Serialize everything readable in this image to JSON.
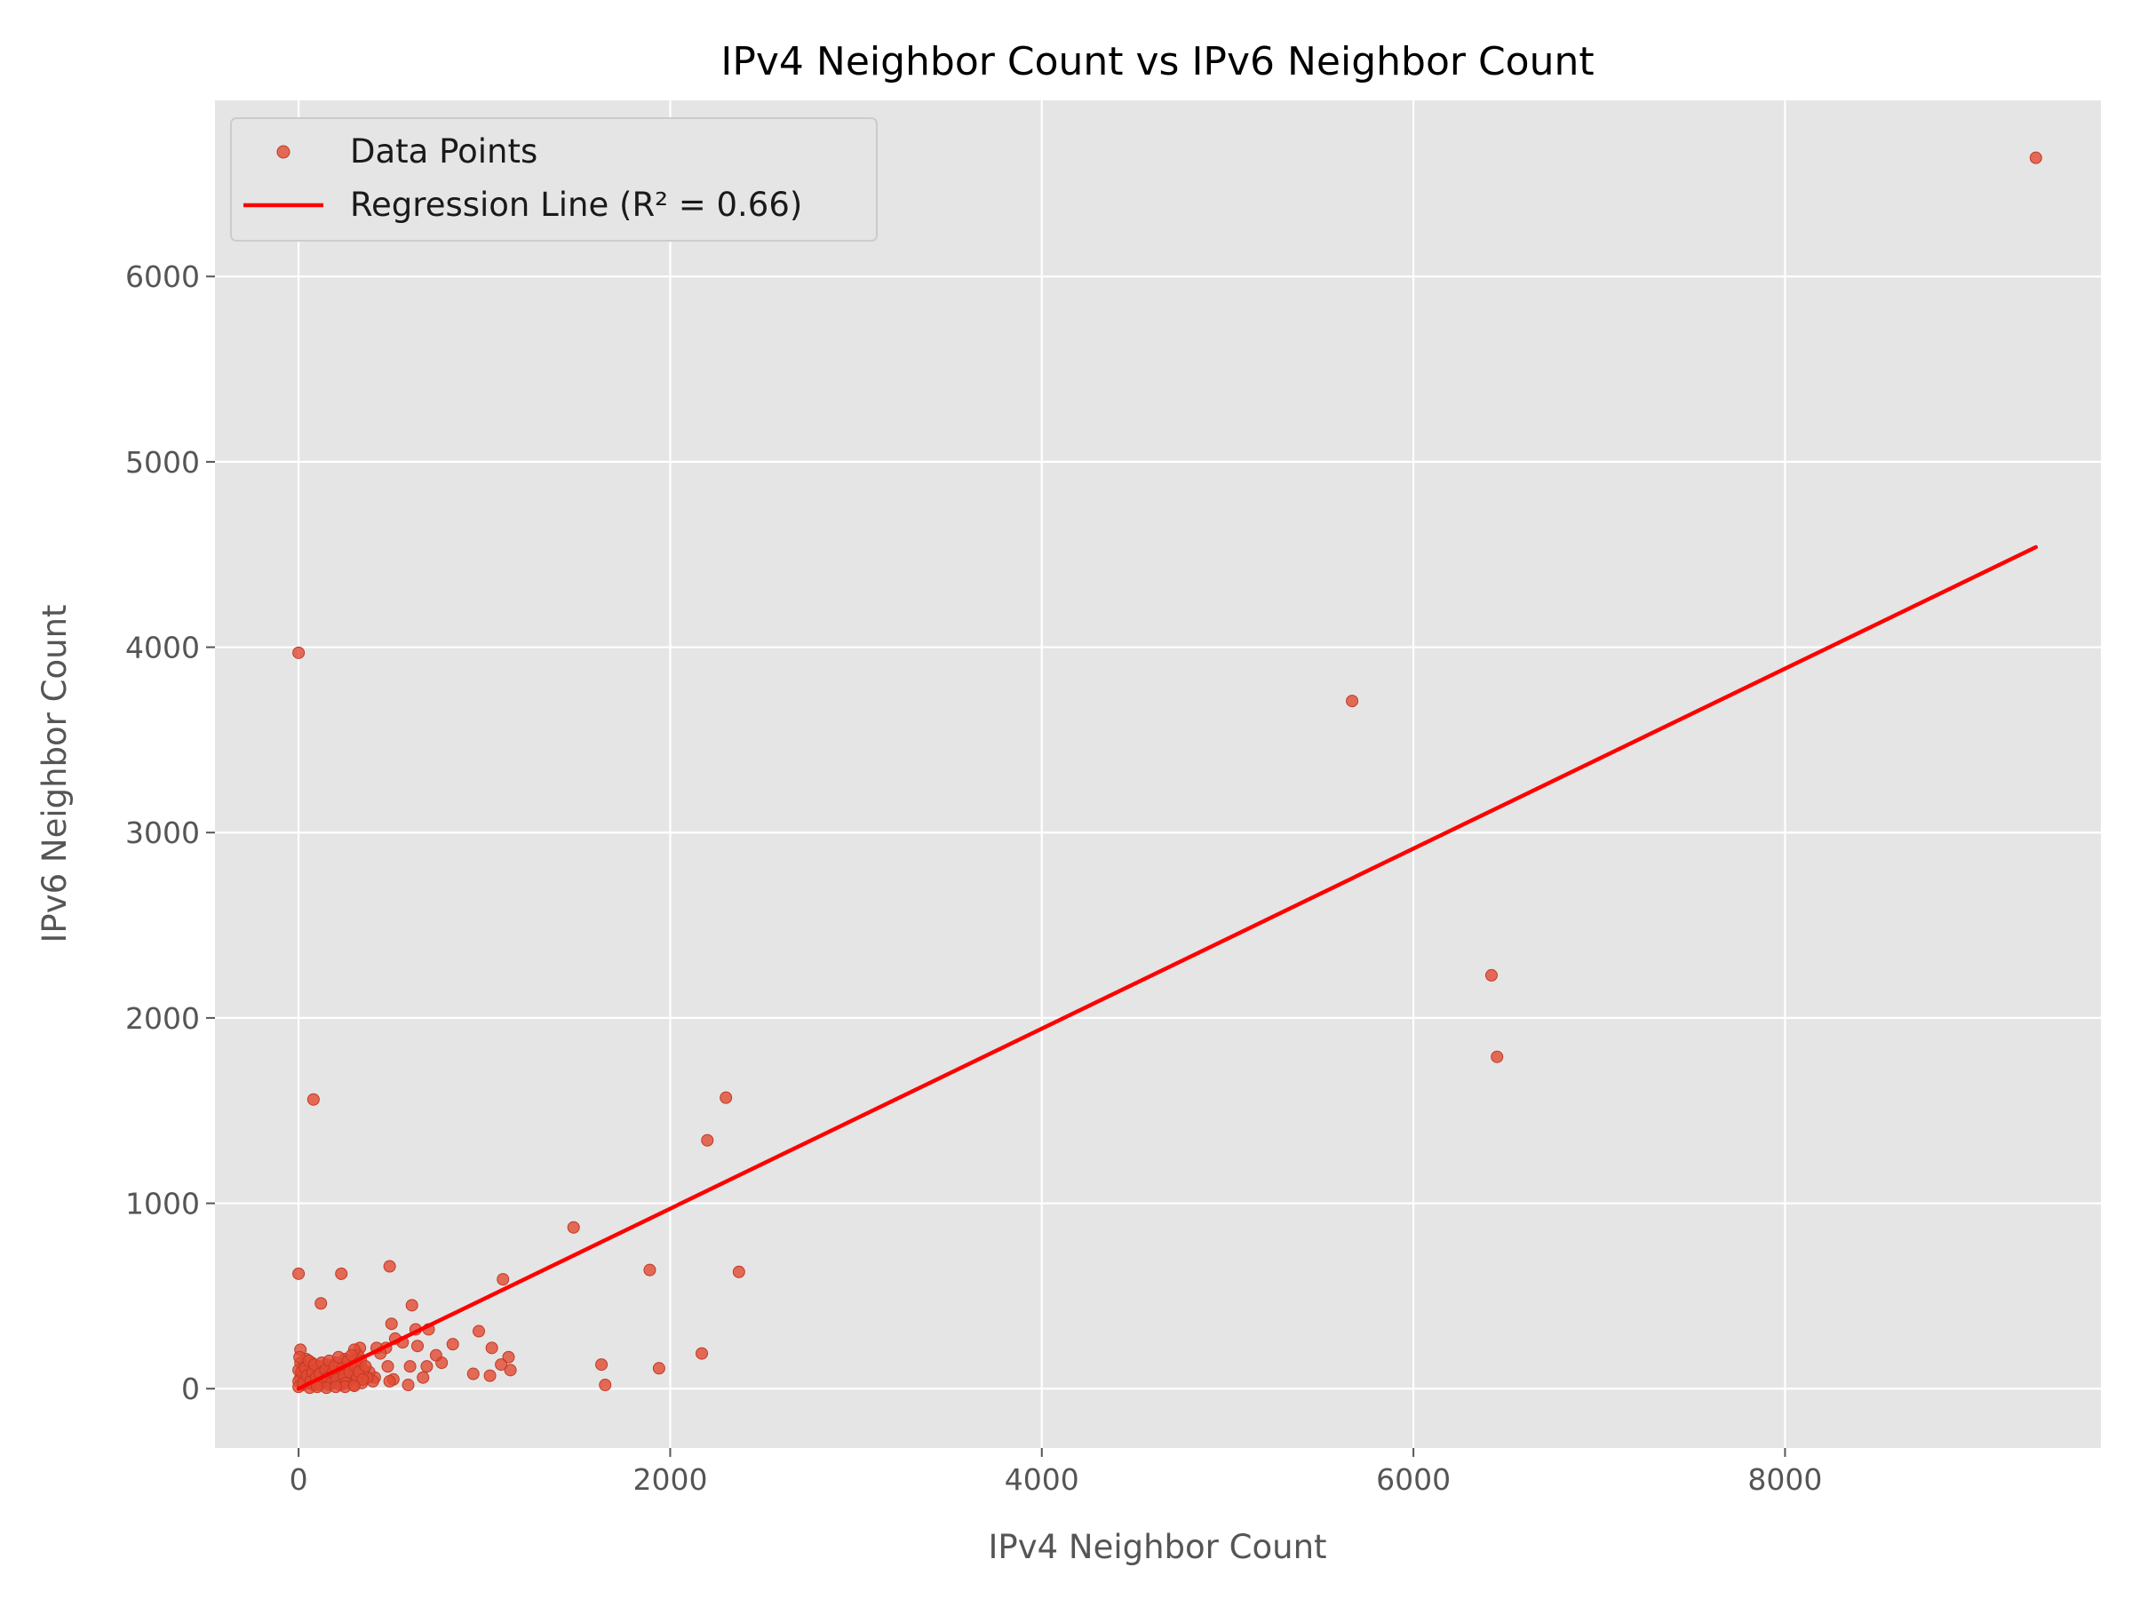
{
  "chart_data": {
    "type": "scatter",
    "title": "IPv4 Neighbor Count vs IPv6 Neighbor Count",
    "xlabel": "IPv4 Neighbor Count",
    "ylabel": "IPv6 Neighbor Count",
    "xlim": [
      -450,
      9700
    ],
    "ylim": [
      -320,
      6950
    ],
    "xticks": [
      0,
      2000,
      4000,
      6000,
      8000
    ],
    "yticks": [
      0,
      1000,
      2000,
      3000,
      4000,
      5000,
      6000
    ],
    "grid": true,
    "legend_position": "top-left",
    "colors": {
      "background": "#e5e5e5",
      "grid": "#ffffff",
      "points": "#e24a33",
      "regression": "#ff0000"
    },
    "series": [
      {
        "name": "Data Points",
        "kind": "scatter",
        "points": [
          [
            9350,
            6640
          ],
          [
            5670,
            3710
          ],
          [
            6420,
            2230
          ],
          [
            6450,
            1790
          ],
          [
            0,
            3970
          ],
          [
            80,
            1560
          ],
          [
            2300,
            1570
          ],
          [
            2200,
            1340
          ],
          [
            1480,
            870
          ],
          [
            1890,
            640
          ],
          [
            2370,
            630
          ],
          [
            2170,
            190
          ],
          [
            1940,
            110
          ],
          [
            1630,
            130
          ],
          [
            1650,
            20
          ],
          [
            1100,
            590
          ],
          [
            1130,
            170
          ],
          [
            1140,
            100
          ],
          [
            1090,
            130
          ],
          [
            1040,
            220
          ],
          [
            1030,
            70
          ],
          [
            970,
            310
          ],
          [
            940,
            80
          ],
          [
            830,
            240
          ],
          [
            770,
            140
          ],
          [
            740,
            180
          ],
          [
            700,
            320
          ],
          [
            690,
            120
          ],
          [
            670,
            60
          ],
          [
            630,
            320
          ],
          [
            640,
            230
          ],
          [
            610,
            450
          ],
          [
            600,
            120
          ],
          [
            590,
            20
          ],
          [
            560,
            250
          ],
          [
            520,
            270
          ],
          [
            500,
            350
          ],
          [
            490,
            660
          ],
          [
            510,
            50
          ],
          [
            490,
            40
          ],
          [
            480,
            120
          ],
          [
            470,
            220
          ],
          [
            440,
            190
          ],
          [
            420,
            220
          ],
          [
            410,
            60
          ],
          [
            400,
            40
          ],
          [
            380,
            90
          ],
          [
            370,
            60
          ],
          [
            350,
            100
          ],
          [
            340,
            30
          ],
          [
            330,
            220
          ],
          [
            320,
            180
          ],
          [
            310,
            140
          ],
          [
            300,
            210
          ],
          [
            290,
            60
          ],
          [
            280,
            100
          ],
          [
            270,
            40
          ],
          [
            260,
            120
          ],
          [
            250,
            160
          ],
          [
            240,
            80
          ],
          [
            230,
            620
          ],
          [
            230,
            50
          ],
          [
            220,
            130
          ],
          [
            210,
            90
          ],
          [
            200,
            140
          ],
          [
            190,
            30
          ],
          [
            180,
            70
          ],
          [
            170,
            110
          ],
          [
            160,
            20
          ],
          [
            150,
            130
          ],
          [
            140,
            60
          ],
          [
            130,
            90
          ],
          [
            120,
            460
          ],
          [
            120,
            30
          ],
          [
            110,
            120
          ],
          [
            100,
            50
          ],
          [
            90,
            80
          ],
          [
            80,
            20
          ],
          [
            70,
            140
          ],
          [
            60,
            60
          ],
          [
            50,
            100
          ],
          [
            50,
            30
          ],
          [
            40,
            160
          ],
          [
            30,
            50
          ],
          [
            30,
            120
          ],
          [
            20,
            80
          ],
          [
            20,
            20
          ],
          [
            10,
            210
          ],
          [
            10,
            140
          ],
          [
            10,
            60
          ],
          [
            0,
            620
          ],
          [
            0,
            100
          ],
          [
            0,
            40
          ],
          [
            0,
            10
          ],
          [
            5,
            170
          ],
          [
            15,
            90
          ],
          [
            25,
            30
          ],
          [
            35,
            110
          ],
          [
            45,
            70
          ],
          [
            55,
            150
          ],
          [
            65,
            40
          ],
          [
            75,
            90
          ],
          [
            85,
            130
          ],
          [
            95,
            60
          ],
          [
            105,
            20
          ],
          [
            115,
            80
          ],
          [
            125,
            140
          ],
          [
            135,
            40
          ],
          [
            145,
            100
          ],
          [
            155,
            60
          ],
          [
            165,
            150
          ],
          [
            175,
            30
          ],
          [
            185,
            90
          ],
          [
            195,
            120
          ],
          [
            205,
            50
          ],
          [
            215,
            170
          ],
          [
            225,
            20
          ],
          [
            235,
            110
          ],
          [
            245,
            70
          ],
          [
            255,
            30
          ],
          [
            265,
            150
          ],
          [
            275,
            90
          ],
          [
            285,
            180
          ],
          [
            295,
            20
          ],
          [
            305,
            120
          ],
          [
            315,
            60
          ],
          [
            325,
            90
          ],
          [
            335,
            150
          ],
          [
            345,
            50
          ],
          [
            360,
            120
          ],
          [
            250,
            10
          ],
          [
            150,
            5
          ],
          [
            60,
            5
          ],
          [
            200,
            10
          ],
          [
            300,
            15
          ],
          [
            100,
            10
          ]
        ]
      },
      {
        "name": "Regression Line (R² = 0.66)",
        "kind": "line",
        "points": [
          [
            0,
            0
          ],
          [
            9350,
            4540
          ]
        ]
      }
    ]
  }
}
